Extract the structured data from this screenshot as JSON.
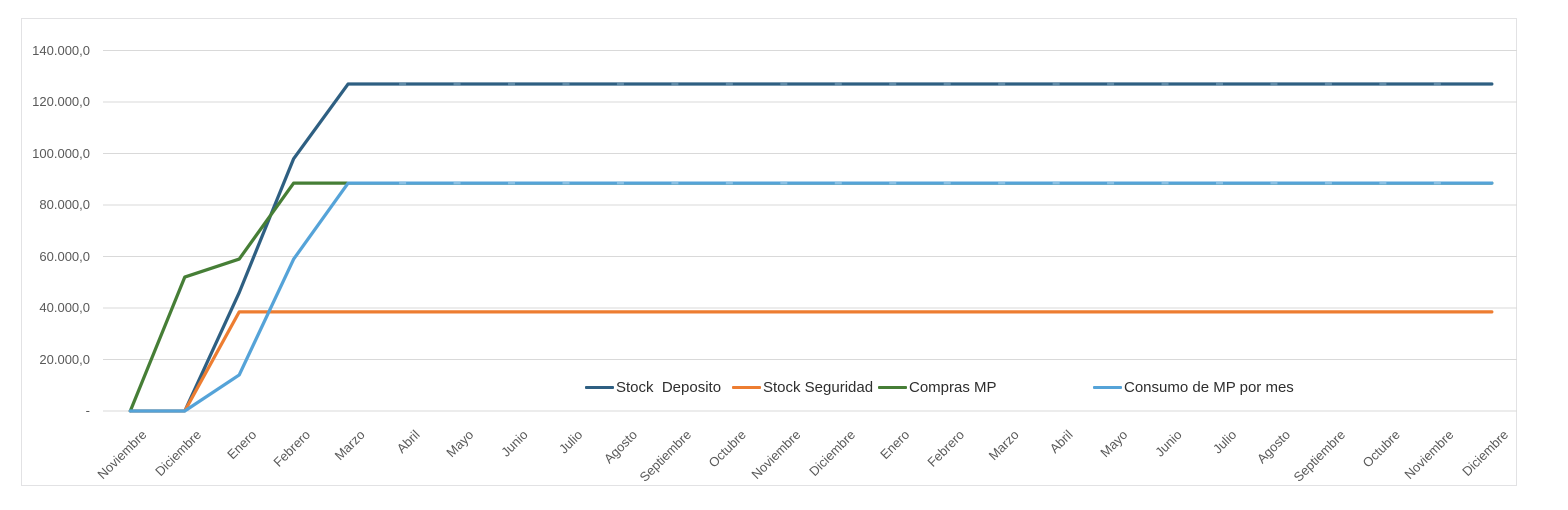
{
  "chart_data": {
    "type": "line",
    "title": "",
    "xlabel": "",
    "ylabel": "",
    "grid": true,
    "legend_position": "bottom-center-inside",
    "ylim": [
      0,
      140000
    ],
    "y_step": 20000,
    "y_tick_labels": [
      "140.000,0",
      "120.000,0",
      "100.000,0",
      "80.000,0",
      "60.000,0",
      "40.000,0",
      "20.000,0",
      "-"
    ],
    "categories": [
      "Noviembre",
      "Diciembre",
      "Enero",
      "Febrero",
      "Marzo",
      "Abril",
      "Mayo",
      "Junio",
      "Julio",
      "Agosto",
      "Septiembre",
      "Octubre",
      "Noviembre",
      "Diciembre",
      "Enero",
      "Febrero",
      "Marzo",
      "Abril",
      "Mayo",
      "Junio",
      "Julio",
      "Agosto",
      "Septiembre",
      "Octubre",
      "Noviembre",
      "Diciembre"
    ],
    "series": [
      {
        "name": "Stock  Deposito",
        "color": "#2e5f82",
        "marker_color": "#5d89a6",
        "values": [
          0,
          0,
          46000,
          98000,
          127000,
          127000,
          127000,
          127000,
          127000,
          127000,
          127000,
          127000,
          127000,
          127000,
          127000,
          127000,
          127000,
          127000,
          127000,
          127000,
          127000,
          127000,
          127000,
          127000,
          127000,
          127000
        ]
      },
      {
        "name": "Stock Seguridad",
        "color": "#ed7d31",
        "marker_color": null,
        "values": [
          0,
          0,
          38500,
          38500,
          38500,
          38500,
          38500,
          38500,
          38500,
          38500,
          38500,
          38500,
          38500,
          38500,
          38500,
          38500,
          38500,
          38500,
          38500,
          38500,
          38500,
          38500,
          38500,
          38500,
          38500,
          38500
        ]
      },
      {
        "name": "Compras MP",
        "color": "#467e36",
        "marker_color": null,
        "values": [
          0,
          52000,
          59000,
          88500,
          88500,
          88500,
          88500,
          88500,
          88500,
          88500,
          88500,
          88500,
          88500,
          88500,
          88500,
          88500,
          88500,
          88500,
          88500,
          88500,
          88500,
          88500,
          88500,
          88500,
          88500,
          88500
        ]
      },
      {
        "name": "Consumo de MP por mes",
        "color": "#55a3d8",
        "marker_color": "#8ac0e5",
        "values": [
          0,
          0,
          14000,
          59000,
          88500,
          88500,
          88500,
          88500,
          88500,
          88500,
          88500,
          88500,
          88500,
          88500,
          88500,
          88500,
          88500,
          88500,
          88500,
          88500,
          88500,
          88500,
          88500,
          88500,
          88500,
          88500
        ]
      }
    ]
  },
  "colors": {
    "gridline": "#d9d9d9",
    "axis_text": "#595959",
    "legend_text": "#2e2e2e",
    "card_border": "#e2e2e4",
    "background": "#ffffff"
  }
}
